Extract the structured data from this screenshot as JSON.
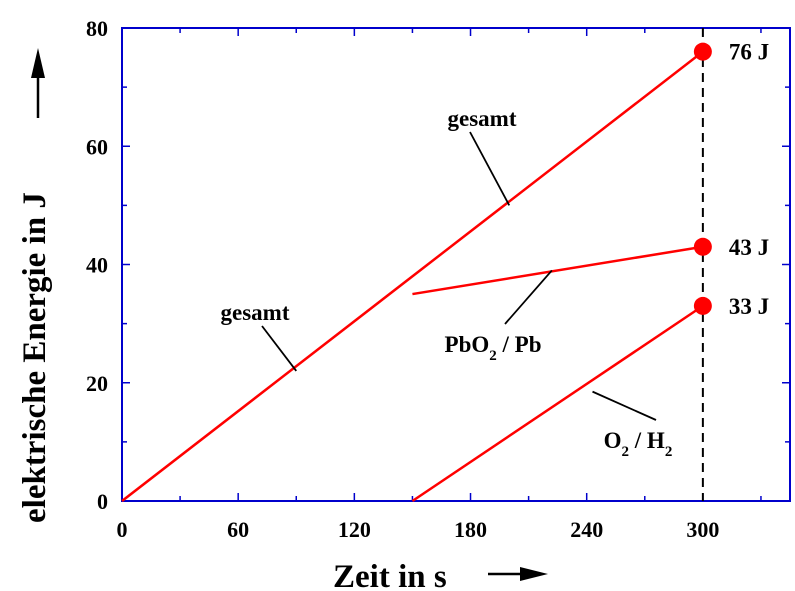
{
  "chart_data": {
    "type": "line",
    "xlabel": "Zeit in s",
    "ylabel": "elektrische Energie in J",
    "xlim": [
      0,
      345
    ],
    "ylim": [
      0,
      80
    ],
    "x_ticks": [
      "0",
      "60",
      "120",
      "180",
      "240",
      "300"
    ],
    "y_ticks": [
      "0",
      "20",
      "40",
      "60",
      "80"
    ],
    "x_tick_values": [
      0,
      60,
      120,
      180,
      240,
      300
    ],
    "y_tick_values": [
      0,
      20,
      40,
      60,
      80
    ],
    "grid": false,
    "series": [
      {
        "name": "gesamt",
        "points": [
          [
            0,
            0
          ],
          [
            300,
            76
          ]
        ]
      },
      {
        "name": "PbO2 / Pb",
        "points": [
          [
            150,
            35
          ],
          [
            300,
            43
          ]
        ]
      },
      {
        "name": "O2 / H2",
        "points": [
          [
            150,
            0
          ],
          [
            300,
            33
          ]
        ]
      }
    ],
    "endpoints": [
      {
        "x": 300,
        "y": 76,
        "label": "76 J"
      },
      {
        "x": 300,
        "y": 43,
        "label": "43 J"
      },
      {
        "x": 300,
        "y": 33,
        "label": "33 J"
      }
    ],
    "vertical_marker": {
      "x": 300,
      "style": "dashed"
    },
    "annotations": [
      {
        "text": "gesamt",
        "target": [
          200,
          50
        ]
      },
      {
        "text": "gesamt",
        "target": [
          90,
          22
        ]
      },
      {
        "text": "PbO",
        "sub": "2",
        "rest": " / Pb",
        "target": [
          222,
          39
        ]
      },
      {
        "text": "O",
        "sub": "2",
        "rest": " / H",
        "sub2": "2",
        "target": [
          243,
          18.5
        ]
      }
    ]
  },
  "colors": {
    "line": "#ff0000",
    "frame": "#0000cc",
    "text": "#000000"
  }
}
